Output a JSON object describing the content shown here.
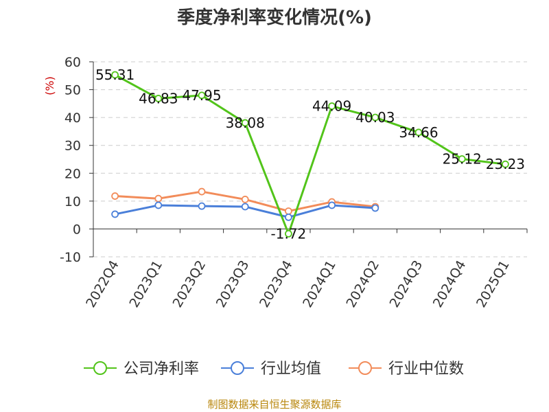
{
  "chart_data": {
    "type": "line",
    "title": "季度净利率变化情况(%)",
    "ylabel": "(%)",
    "ylim": [
      -10,
      60
    ],
    "yticks": [
      60,
      50,
      40,
      30,
      20,
      10,
      0,
      -10
    ],
    "categories": [
      "2022Q4",
      "2023Q1",
      "2023Q2",
      "2023Q3",
      "2023Q4",
      "2024Q1",
      "2024Q2",
      "2024Q3",
      "2024Q4",
      "2025Q1"
    ],
    "grid": true,
    "legend_position": "bottom",
    "series": [
      {
        "name": "公司净利率",
        "color": "#52c41a",
        "values": [
          55.31,
          46.83,
          47.95,
          38.08,
          -1.72,
          44.09,
          40.03,
          34.66,
          25.12,
          23.23
        ],
        "labels": [
          "55.31",
          "46.83",
          "47.95",
          "38.08",
          "-1.72",
          "44.09",
          "40.03",
          "34.66",
          "25.12",
          "23.23"
        ]
      },
      {
        "name": "行业均值",
        "color": "#4a7fd9",
        "values": [
          5.3,
          8.5,
          8.2,
          8.0,
          4.2,
          8.5,
          7.5,
          null,
          null,
          null
        ]
      },
      {
        "name": "行业中位数",
        "color": "#f28c5a",
        "values": [
          11.8,
          10.9,
          13.4,
          10.6,
          6.4,
          9.7,
          8.0,
          null,
          null,
          null
        ]
      }
    ]
  },
  "source": "制图数据来自恒生聚源数据库"
}
